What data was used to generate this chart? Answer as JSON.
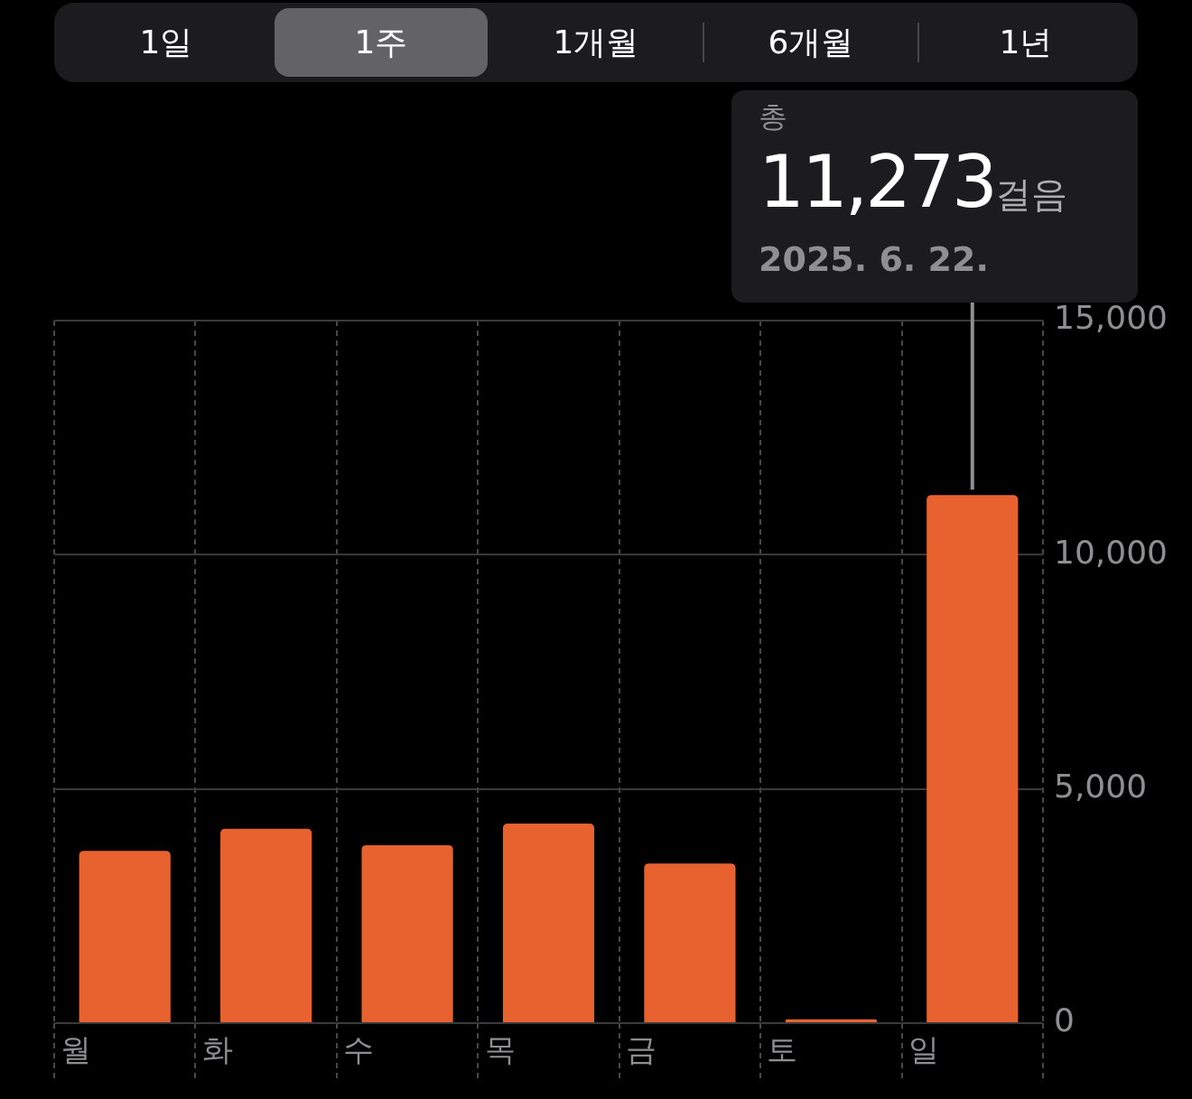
{
  "chart_data": {
    "type": "bar",
    "categories": [
      "월",
      "화",
      "수",
      "목",
      "금",
      "토",
      "일"
    ],
    "values": [
      3680,
      4150,
      3800,
      4260,
      3410,
      80,
      11273
    ],
    "color": "#e8622f",
    "ylim": [
      0,
      15000
    ],
    "yticks": [
      {
        "value": 0,
        "label": "0"
      },
      {
        "value": 5000,
        "label": "5,000"
      },
      {
        "value": 10000,
        "label": "10,000"
      },
      {
        "value": 15000,
        "label": "15,000"
      }
    ],
    "grid": true,
    "annotations": [
      "1일",
      "1주",
      "1개월",
      "6개월",
      "1년",
      "총",
      "11,273걸음",
      "2025. 6. 22."
    ]
  }
}
